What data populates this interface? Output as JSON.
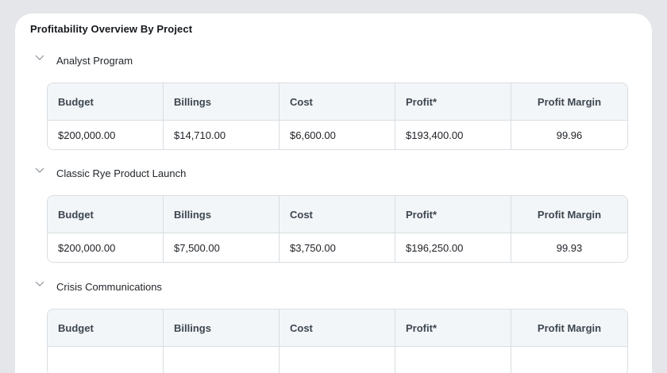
{
  "page": {
    "title": "Profitability Overview By Project"
  },
  "columns": [
    "Budget",
    "Billings",
    "Cost",
    "Profit*",
    "Profit Margin"
  ],
  "projects": [
    {
      "name": "Analyst Program",
      "budget": "$200,000.00",
      "billings": "$14,710.00",
      "cost": "$6,600.00",
      "profit": "$193,400.00",
      "margin": "99.96"
    },
    {
      "name": "Classic Rye Product Launch",
      "budget": "$200,000.00",
      "billings": "$7,500.00",
      "cost": "$3,750.00",
      "profit": "$196,250.00",
      "margin": "99.93"
    },
    {
      "name": "Crisis Communications",
      "budget": "",
      "billings": "",
      "cost": "",
      "profit": "",
      "margin": ""
    }
  ],
  "icons": {
    "collapse": "chevron-down-icon"
  },
  "colors": {
    "header_bg": "#f3f6f8",
    "border": "#d8dde2",
    "frame": "#e4e6e9"
  }
}
